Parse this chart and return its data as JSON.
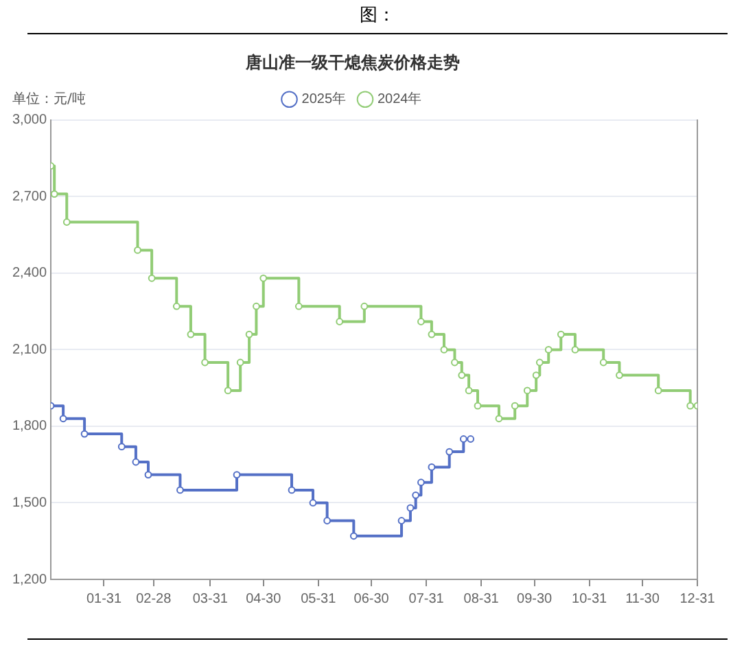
{
  "chart_data": {
    "type": "step",
    "title": "唐山准一级干熄焦炭价格走势",
    "ylabel": "单位：元/吨",
    "annotations": [
      "图："
    ],
    "xlim": [
      "--01-01",
      "--12-31"
    ],
    "xticks": [
      {
        "value": "--01-31",
        "label": "01-31"
      },
      {
        "value": "--02-28",
        "label": "02-28"
      },
      {
        "value": "--03-31",
        "label": "03-31"
      },
      {
        "value": "--04-30",
        "label": "04-30"
      },
      {
        "value": "--05-31",
        "label": "05-31"
      },
      {
        "value": "--06-30",
        "label": "06-30"
      },
      {
        "value": "--07-31",
        "label": "07-31"
      },
      {
        "value": "--08-31",
        "label": "08-31"
      },
      {
        "value": "--09-30",
        "label": "09-30"
      },
      {
        "value": "--10-31",
        "label": "10-31"
      },
      {
        "value": "--11-30",
        "label": "11-30"
      },
      {
        "value": "--12-31",
        "label": "12-31"
      }
    ],
    "ylim": [
      1200,
      3000
    ],
    "yticks": [
      {
        "value": 1200,
        "label": "1,200"
      },
      {
        "value": 1500,
        "label": "1,500"
      },
      {
        "value": 1800,
        "label": "1,800"
      },
      {
        "value": 2100,
        "label": "2,100"
      },
      {
        "value": 2400,
        "label": "2,400"
      },
      {
        "value": 2700,
        "label": "2,700"
      },
      {
        "value": 3000,
        "label": "3,000"
      }
    ],
    "grid": "y",
    "legend": "top",
    "marker": "circle",
    "line_style": "solid",
    "series": [
      {
        "name": "2025年",
        "color": "#5470c6",
        "x": [
          "--01-01",
          "--01-08",
          "--01-20",
          "--02-10",
          "--02-18",
          "--02-25",
          "--03-14",
          "--04-15",
          "--05-16",
          "--05-28",
          "--06-05",
          "--06-20",
          "--07-17",
          "--07-22",
          "--07-25",
          "--07-28",
          "--08-03",
          "--08-13",
          "--08-21",
          "--08-25"
        ],
        "values": [
          1880,
          1830,
          1770,
          1720,
          1660,
          1610,
          1550,
          1610,
          1550,
          1500,
          1430,
          1370,
          1430,
          1480,
          1530,
          1580,
          1640,
          1700,
          1750,
          1750
        ]
      },
      {
        "name": "2024年",
        "color": "#91cc75",
        "x": [
          "--01-01",
          "--01-03",
          "--01-10",
          "--02-19",
          "--02-27",
          "--03-12",
          "--03-20",
          "--03-28",
          "--04-10",
          "--04-17",
          "--04-22",
          "--04-26",
          "--04-30",
          "--05-20",
          "--06-12",
          "--06-26",
          "--07-28",
          "--08-03",
          "--08-10",
          "--08-16",
          "--08-20",
          "--08-24",
          "--08-29",
          "--09-10",
          "--09-19",
          "--09-26",
          "--10-01",
          "--10-03",
          "--10-08",
          "--10-15",
          "--10-23",
          "--11-08",
          "--11-17",
          "--12-09",
          "--12-27",
          "--12-31"
        ],
        "values": [
          2820,
          2710,
          2600,
          2490,
          2380,
          2270,
          2160,
          2050,
          1940,
          2050,
          2160,
          2270,
          2380,
          2270,
          2210,
          2270,
          2210,
          2160,
          2100,
          2050,
          2000,
          1940,
          1880,
          1830,
          1880,
          1940,
          2000,
          2050,
          2100,
          2160,
          2100,
          2050,
          2000,
          1940,
          1880,
          1880
        ]
      }
    ]
  }
}
